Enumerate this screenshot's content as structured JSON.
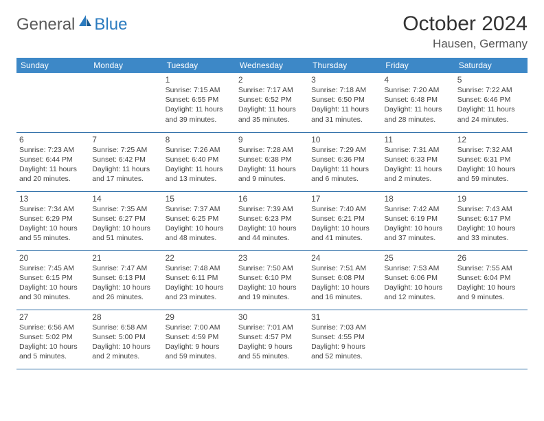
{
  "logo": {
    "text1": "General",
    "text2": "Blue"
  },
  "title": "October 2024",
  "location": "Hausen, Germany",
  "header_bg": "#3d88c7",
  "border_color": "#2f6fa8",
  "day_names": [
    "Sunday",
    "Monday",
    "Tuesday",
    "Wednesday",
    "Thursday",
    "Friday",
    "Saturday"
  ],
  "weeks": [
    [
      null,
      null,
      {
        "n": "1",
        "sr": "7:15 AM",
        "ss": "6:55 PM",
        "dl": "11 hours and 39 minutes."
      },
      {
        "n": "2",
        "sr": "7:17 AM",
        "ss": "6:52 PM",
        "dl": "11 hours and 35 minutes."
      },
      {
        "n": "3",
        "sr": "7:18 AM",
        "ss": "6:50 PM",
        "dl": "11 hours and 31 minutes."
      },
      {
        "n": "4",
        "sr": "7:20 AM",
        "ss": "6:48 PM",
        "dl": "11 hours and 28 minutes."
      },
      {
        "n": "5",
        "sr": "7:22 AM",
        "ss": "6:46 PM",
        "dl": "11 hours and 24 minutes."
      }
    ],
    [
      {
        "n": "6",
        "sr": "7:23 AM",
        "ss": "6:44 PM",
        "dl": "11 hours and 20 minutes."
      },
      {
        "n": "7",
        "sr": "7:25 AM",
        "ss": "6:42 PM",
        "dl": "11 hours and 17 minutes."
      },
      {
        "n": "8",
        "sr": "7:26 AM",
        "ss": "6:40 PM",
        "dl": "11 hours and 13 minutes."
      },
      {
        "n": "9",
        "sr": "7:28 AM",
        "ss": "6:38 PM",
        "dl": "11 hours and 9 minutes."
      },
      {
        "n": "10",
        "sr": "7:29 AM",
        "ss": "6:36 PM",
        "dl": "11 hours and 6 minutes."
      },
      {
        "n": "11",
        "sr": "7:31 AM",
        "ss": "6:33 PM",
        "dl": "11 hours and 2 minutes."
      },
      {
        "n": "12",
        "sr": "7:32 AM",
        "ss": "6:31 PM",
        "dl": "10 hours and 59 minutes."
      }
    ],
    [
      {
        "n": "13",
        "sr": "7:34 AM",
        "ss": "6:29 PM",
        "dl": "10 hours and 55 minutes."
      },
      {
        "n": "14",
        "sr": "7:35 AM",
        "ss": "6:27 PM",
        "dl": "10 hours and 51 minutes."
      },
      {
        "n": "15",
        "sr": "7:37 AM",
        "ss": "6:25 PM",
        "dl": "10 hours and 48 minutes."
      },
      {
        "n": "16",
        "sr": "7:39 AM",
        "ss": "6:23 PM",
        "dl": "10 hours and 44 minutes."
      },
      {
        "n": "17",
        "sr": "7:40 AM",
        "ss": "6:21 PM",
        "dl": "10 hours and 41 minutes."
      },
      {
        "n": "18",
        "sr": "7:42 AM",
        "ss": "6:19 PM",
        "dl": "10 hours and 37 minutes."
      },
      {
        "n": "19",
        "sr": "7:43 AM",
        "ss": "6:17 PM",
        "dl": "10 hours and 33 minutes."
      }
    ],
    [
      {
        "n": "20",
        "sr": "7:45 AM",
        "ss": "6:15 PM",
        "dl": "10 hours and 30 minutes."
      },
      {
        "n": "21",
        "sr": "7:47 AM",
        "ss": "6:13 PM",
        "dl": "10 hours and 26 minutes."
      },
      {
        "n": "22",
        "sr": "7:48 AM",
        "ss": "6:11 PM",
        "dl": "10 hours and 23 minutes."
      },
      {
        "n": "23",
        "sr": "7:50 AM",
        "ss": "6:10 PM",
        "dl": "10 hours and 19 minutes."
      },
      {
        "n": "24",
        "sr": "7:51 AM",
        "ss": "6:08 PM",
        "dl": "10 hours and 16 minutes."
      },
      {
        "n": "25",
        "sr": "7:53 AM",
        "ss": "6:06 PM",
        "dl": "10 hours and 12 minutes."
      },
      {
        "n": "26",
        "sr": "7:55 AM",
        "ss": "6:04 PM",
        "dl": "10 hours and 9 minutes."
      }
    ],
    [
      {
        "n": "27",
        "sr": "6:56 AM",
        "ss": "5:02 PM",
        "dl": "10 hours and 5 minutes."
      },
      {
        "n": "28",
        "sr": "6:58 AM",
        "ss": "5:00 PM",
        "dl": "10 hours and 2 minutes."
      },
      {
        "n": "29",
        "sr": "7:00 AM",
        "ss": "4:59 PM",
        "dl": "9 hours and 59 minutes."
      },
      {
        "n": "30",
        "sr": "7:01 AM",
        "ss": "4:57 PM",
        "dl": "9 hours and 55 minutes."
      },
      {
        "n": "31",
        "sr": "7:03 AM",
        "ss": "4:55 PM",
        "dl": "9 hours and 52 minutes."
      },
      null,
      null
    ]
  ],
  "labels": {
    "sunrise": "Sunrise: ",
    "sunset": "Sunset: ",
    "daylight": "Daylight: "
  }
}
